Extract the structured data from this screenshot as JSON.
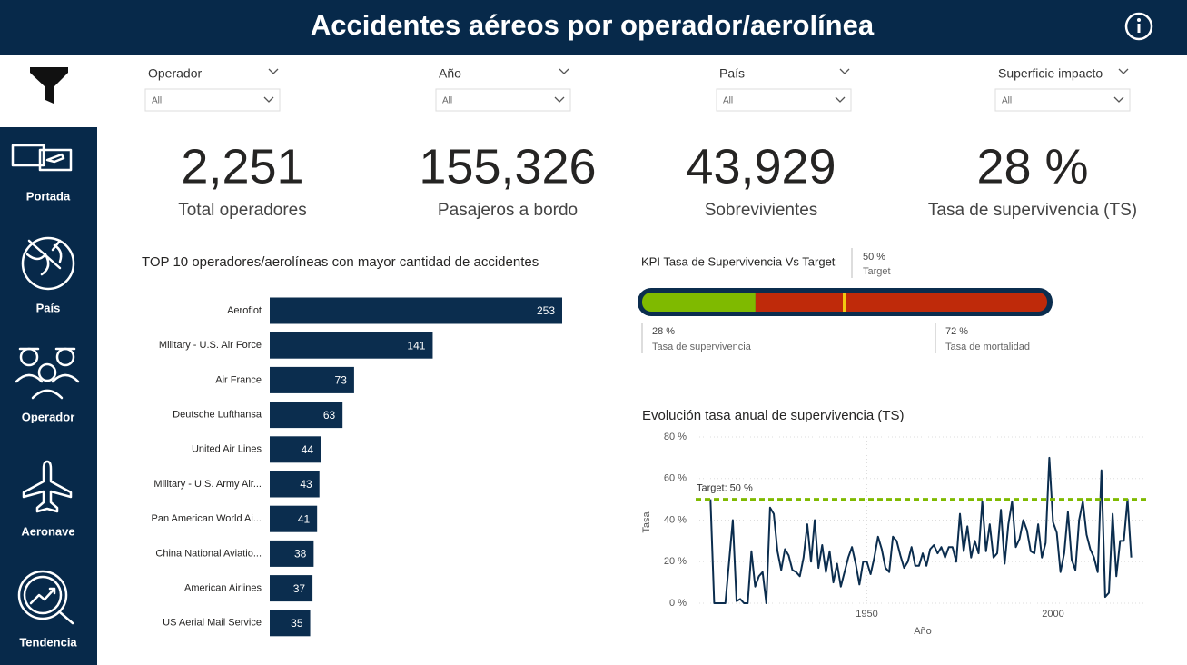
{
  "header": {
    "title": "Accidentes aéreos por operador/aerolínea"
  },
  "nav": {
    "items": [
      "Portada",
      "País",
      "Operador",
      "Aeronave",
      "Tendencia"
    ]
  },
  "filters": [
    {
      "label": "Operador",
      "value": "All"
    },
    {
      "label": "Año",
      "value": "All"
    },
    {
      "label": "País",
      "value": "All"
    },
    {
      "label": "Superficie impacto",
      "value": "All"
    }
  ],
  "kpis": [
    {
      "value": "2,251",
      "label": "Total operadores"
    },
    {
      "value": "155,326",
      "label": "Pasajeros a bordo"
    },
    {
      "value": "43,929",
      "label": "Sobrevivientes"
    },
    {
      "value": "28 %",
      "label": "Tasa de supervivencia (TS)"
    }
  ],
  "gauge": {
    "title": "KPI Tasa de Supervivencia Vs Target",
    "value": 28,
    "value_label": "28 %",
    "value_caption": "Tasa de supervivencia",
    "value_color": "#7fba00",
    "remainder": 72,
    "remainder_label": "72 %",
    "remainder_caption": "Tasa de mortalidad",
    "remainder_color": "#bf2a0a",
    "target": 50,
    "target_label": "50 %",
    "target_caption": "Target",
    "target_color": "#f2c811"
  },
  "chart_data": [
    {
      "type": "bar",
      "orientation": "horizontal",
      "title": "TOP 10 operadores/aerolíneas con mayor cantidad de accidentes",
      "categories": [
        "Aeroflot",
        "Military - U.S. Air Force",
        "Air France",
        "Deutsche Lufthansa",
        "United Air Lines",
        "Military - U.S. Army Air...",
        "Pan American World Ai...",
        "China National Aviatio...",
        "American Airlines",
        "US Aerial Mail Service"
      ],
      "values": [
        253,
        141,
        73,
        63,
        44,
        43,
        41,
        38,
        37,
        35
      ],
      "color": "#0b2d4e"
    },
    {
      "type": "line",
      "title": "Evolución tasa anual de supervivencia (TS)",
      "xlabel": "Año",
      "ylabel": "Tasa",
      "color": "#0b2d4e",
      "x": [
        1908,
        1909,
        1910,
        1911,
        1912,
        1913,
        1914,
        1915,
        1916,
        1917,
        1918,
        1919,
        1920,
        1921,
        1922,
        1923,
        1924,
        1925,
        1926,
        1927,
        1928,
        1929,
        1930,
        1931,
        1932,
        1933,
        1934,
        1935,
        1936,
        1937,
        1938,
        1939,
        1940,
        1941,
        1942,
        1943,
        1944,
        1945,
        1946,
        1947,
        1948,
        1949,
        1950,
        1951,
        1952,
        1953,
        1954,
        1955,
        1956,
        1957,
        1958,
        1959,
        1960,
        1961,
        1962,
        1963,
        1964,
        1965,
        1966,
        1967,
        1968,
        1969,
        1970,
        1971,
        1972,
        1973,
        1974,
        1975,
        1976,
        1977,
        1978,
        1979,
        1980,
        1981,
        1982,
        1983,
        1984,
        1985,
        1986,
        1987,
        1988,
        1989,
        1990,
        1991,
        1992,
        1993,
        1994,
        1995,
        1996,
        1997,
        1998,
        1999,
        2000,
        2001,
        2002,
        2003,
        2004,
        2005,
        2006,
        2007,
        2008,
        2009,
        2010,
        2011,
        2012,
        2013,
        2014,
        2015,
        2016,
        2017,
        2018,
        2019,
        2020,
        2021
      ],
      "values": [
        50,
        0,
        0,
        0,
        0,
        20,
        40,
        1,
        2,
        0,
        0,
        25,
        8,
        13,
        15,
        0,
        46,
        43,
        25,
        16,
        26,
        23,
        16,
        15,
        13,
        22,
        38,
        20,
        40,
        17,
        28,
        15,
        25,
        10,
        19,
        8,
        15,
        22,
        27,
        19,
        9,
        20,
        20,
        14,
        22,
        32,
        26,
        17,
        15,
        32,
        30,
        23,
        17,
        20,
        27,
        18,
        18,
        24,
        18,
        26,
        28,
        24,
        27,
        22,
        27,
        27,
        20,
        43,
        25,
        37,
        22,
        30,
        24,
        49,
        25,
        38,
        22,
        24,
        45,
        19,
        38,
        49,
        27,
        31,
        40,
        35,
        25,
        24,
        38,
        22,
        29,
        70,
        39,
        34,
        15,
        24,
        44,
        21,
        16,
        40,
        49,
        33,
        26,
        22,
        15,
        64,
        3,
        5,
        43,
        13,
        30,
        30,
        50,
        22
      ],
      "xlim": [
        1905,
        2025
      ],
      "xticks": [
        1950,
        2000
      ],
      "ylim": [
        0,
        80
      ],
      "yticks": [
        {
          "value": 0,
          "label": "0 %"
        },
        {
          "value": 20,
          "label": "20 %"
        },
        {
          "value": 40,
          "label": "40 %"
        },
        {
          "value": 60,
          "label": "60 %"
        },
        {
          "value": 80,
          "label": "80 %"
        }
      ],
      "grid": true,
      "target": 50,
      "target_label": "Target: 50 %",
      "target_color": "#7fba00"
    }
  ]
}
